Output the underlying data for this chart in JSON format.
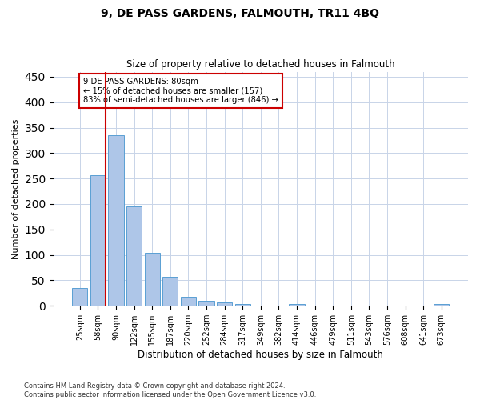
{
  "title": "9, DE PASS GARDENS, FALMOUTH, TR11 4BQ",
  "subtitle": "Size of property relative to detached houses in Falmouth",
  "xlabel": "Distribution of detached houses by size in Falmouth",
  "ylabel": "Number of detached properties",
  "categories": [
    "25sqm",
    "58sqm",
    "90sqm",
    "122sqm",
    "155sqm",
    "187sqm",
    "220sqm",
    "252sqm",
    "284sqm",
    "317sqm",
    "349sqm",
    "382sqm",
    "414sqm",
    "446sqm",
    "479sqm",
    "511sqm",
    "543sqm",
    "576sqm",
    "608sqm",
    "641sqm",
    "673sqm"
  ],
  "values": [
    35,
    256,
    335,
    196,
    104,
    57,
    17,
    10,
    7,
    4,
    0,
    0,
    4,
    0,
    0,
    0,
    0,
    0,
    0,
    0,
    4
  ],
  "bar_color": "#aec6e8",
  "bar_edgecolor": "#5a9fd4",
  "vline_color": "#cc0000",
  "annotation_text": "9 DE PASS GARDENS: 80sqm\n← 15% of detached houses are smaller (157)\n83% of semi-detached houses are larger (846) →",
  "annotation_box_edgecolor": "#cc0000",
  "ylim": [
    0,
    460
  ],
  "yticks": [
    0,
    50,
    100,
    150,
    200,
    250,
    300,
    350,
    400,
    450
  ],
  "footer_line1": "Contains HM Land Registry data © Crown copyright and database right 2024.",
  "footer_line2": "Contains public sector information licensed under the Open Government Licence v3.0.",
  "bg_color": "#ffffff",
  "grid_color": "#c8d4e8"
}
